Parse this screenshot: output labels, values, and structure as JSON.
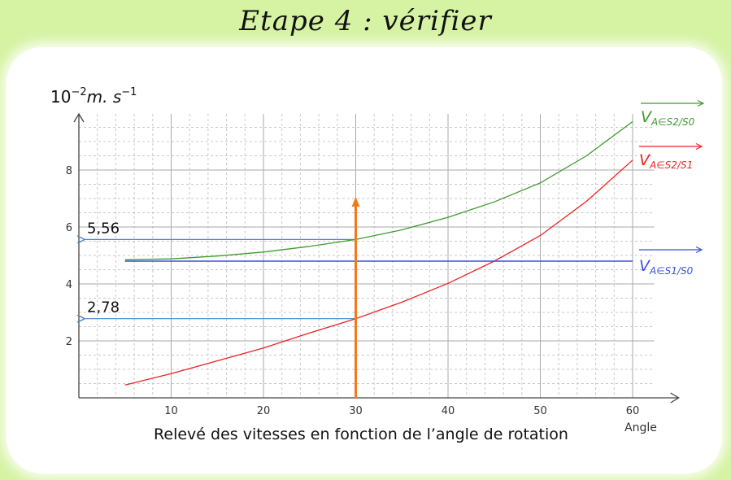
{
  "slide_title": "Etape 4 : vérifier",
  "colors": {
    "background": "#d6f3a4",
    "green_series": "#3f9a2f",
    "red_series": "#ee2222",
    "blue_series": "#3b4fd8",
    "annotation_arrow": "#4a86c8",
    "orange_marker": "#ee7a22"
  },
  "chart_data": {
    "type": "line",
    "title": "",
    "caption": "Relevé des vitesses en fonction de l’angle de rotation",
    "xlabel": "Angle",
    "ylabel": "10^{-2} m.s^{-1}",
    "xlim": [
      0,
      62
    ],
    "ylim": [
      0,
      10
    ],
    "x_ticks": [
      10,
      20,
      30,
      40,
      50,
      60
    ],
    "y_ticks": [
      2,
      4,
      6,
      8
    ],
    "grid": true,
    "series": [
      {
        "name": "V A∈S2/S0",
        "label_main": "V",
        "label_sub": "A∈S2/S0",
        "color": "#3f9a2f",
        "x": [
          5,
          10,
          15,
          20,
          25,
          30,
          35,
          40,
          45,
          50,
          55,
          60
        ],
        "y": [
          4.85,
          4.88,
          4.98,
          5.12,
          5.32,
          5.56,
          5.9,
          6.34,
          6.88,
          7.55,
          8.5,
          9.7
        ]
      },
      {
        "name": "V A∈S2/S1",
        "label_main": "V",
        "label_sub": "A∈S2/S1",
        "color": "#ee2222",
        "x": [
          5,
          10,
          15,
          20,
          25,
          30,
          35,
          40,
          45,
          50,
          55,
          60
        ],
        "y": [
          0.45,
          0.85,
          1.3,
          1.75,
          2.28,
          2.78,
          3.36,
          4.02,
          4.8,
          5.7,
          6.9,
          8.35
        ]
      },
      {
        "name": "V A∈S1/S0",
        "label_main": "V",
        "label_sub": "A∈S1/S0",
        "color": "#3b4fd8",
        "x": [
          5,
          60
        ],
        "y": [
          4.8,
          4.8
        ]
      }
    ],
    "annotations": [
      {
        "label": "5,56",
        "y": 5.56,
        "from_x": 30
      },
      {
        "label": "2,78",
        "y": 2.78,
        "from_x": 30
      }
    ],
    "marker_x": 30
  }
}
